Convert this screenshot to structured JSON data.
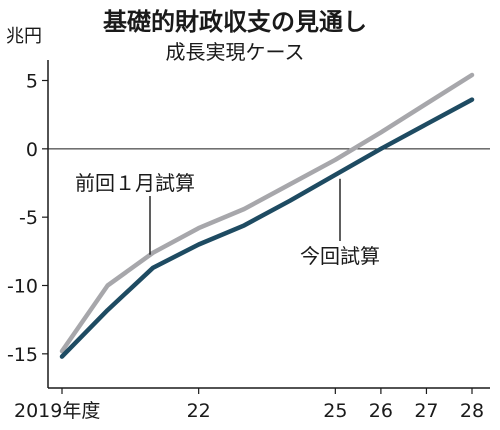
{
  "chart_data": {
    "type": "line",
    "title": "基礎的財政収支の見通し",
    "subtitle": "成長実現ケース",
    "ylabel": "兆円",
    "ylim": [
      -17.5,
      6.5
    ],
    "y_ticks": [
      5,
      0,
      -5,
      -10,
      -15
    ],
    "y_tick_labels": [
      "5",
      "0",
      "-5",
      "-10",
      "-15"
    ],
    "x_ticks": [
      2019,
      2022,
      2025,
      2026,
      2027,
      2028
    ],
    "x_tick_labels": [
      "2019年度",
      "22",
      "25",
      "26",
      "27",
      "28"
    ],
    "xlim": [
      2019,
      2028
    ],
    "series": [
      {
        "name": "前回１月試算",
        "color": "#a7a7ab",
        "x": [
          2019,
          2020,
          2021,
          2022,
          2023,
          2024,
          2025,
          2026,
          2027,
          2028
        ],
        "values": [
          -14.8,
          -10.0,
          -7.6,
          -5.8,
          -4.4,
          -2.6,
          -0.8,
          1.2,
          3.3,
          5.4
        ]
      },
      {
        "name": "今回試算",
        "color": "#1e4b62",
        "x": [
          2019,
          2020,
          2021,
          2022,
          2023,
          2024,
          2025,
          2026,
          2027,
          2028
        ],
        "values": [
          -15.2,
          -11.8,
          -8.7,
          -7.0,
          -5.6,
          -3.8,
          -1.9,
          0.0,
          1.8,
          3.6
        ]
      }
    ]
  }
}
